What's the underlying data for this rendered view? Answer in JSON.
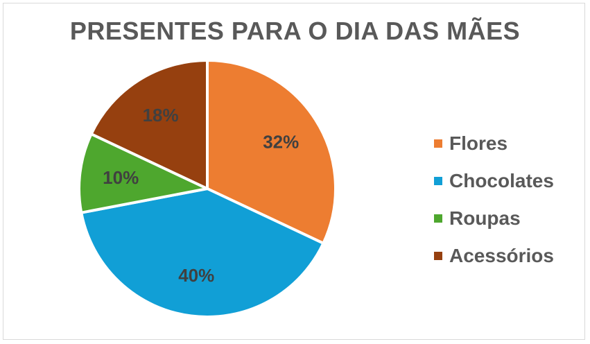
{
  "chart_data": {
    "type": "pie",
    "title": "PRESENTES PARA O DIA DAS MÃES",
    "categories": [
      "Flores",
      "Chocolates",
      "Roupas",
      "Acessórios"
    ],
    "values": [
      32,
      40,
      10,
      18
    ],
    "data_labels": [
      "32%",
      "40%",
      "10%",
      "18%"
    ],
    "colors": [
      "#ed7d31",
      "#119fd6",
      "#4ea72e",
      "#96400f"
    ],
    "legend_position": "right"
  }
}
